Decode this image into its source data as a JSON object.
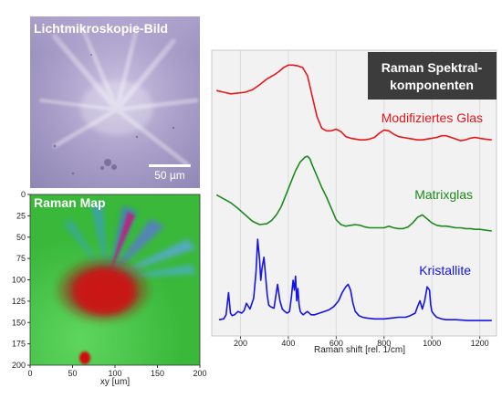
{
  "micro": {
    "title": "Lichtmikroskopie-Bild",
    "scalebar": "50 µm"
  },
  "map": {
    "title": "Raman Map",
    "xlabel": "xy [um]",
    "xticks": [
      "0",
      "50",
      "100",
      "150",
      "200"
    ],
    "yticks": [
      "0",
      "25",
      "50",
      "75",
      "100",
      "125",
      "150",
      "175",
      "200"
    ]
  },
  "spectra": {
    "title_line1": "Raman Spektral-",
    "title_line2": "komponenten",
    "xlabel": "Raman shift [rel. 1/cm]",
    "xticks": [
      "200",
      "400",
      "600",
      "800",
      "1000",
      "1200"
    ]
  },
  "colors": {
    "modified": "#e8161b",
    "matrix": "#1c8a1c",
    "crystal": "#1414e6",
    "title_box": "#3c3c3c",
    "plot_bg": "#f2f2f2"
  },
  "chart_data": {
    "type": "line",
    "xlabel": "Raman shift [rel. 1/cm]",
    "ylabel": "",
    "xlim": [
      80,
      1270
    ],
    "series": [
      {
        "name": "Modifiziertes Glas",
        "x": [
          100,
          130,
          160,
          190,
          220,
          250,
          280,
          310,
          340,
          360,
          380,
          400,
          420,
          440,
          460,
          480,
          500,
          520,
          540,
          560,
          580,
          600,
          620,
          640,
          660,
          680,
          700,
          720,
          740,
          760,
          780,
          800,
          820,
          840,
          860,
          880,
          900,
          920,
          940,
          960,
          980,
          1000,
          1020,
          1040,
          1060,
          1080,
          1100,
          1120,
          1140,
          1160,
          1180,
          1200,
          1220,
          1250
        ],
        "y": [
          0.62,
          0.6,
          0.58,
          0.59,
          0.6,
          0.63,
          0.69,
          0.76,
          0.81,
          0.85,
          0.9,
          0.93,
          0.93,
          0.92,
          0.9,
          0.8,
          0.55,
          0.3,
          0.16,
          0.13,
          0.13,
          0.15,
          0.12,
          0.06,
          0.04,
          0.03,
          0.02,
          0.02,
          0.03,
          0.05,
          0.1,
          0.14,
          0.13,
          0.09,
          0.06,
          0.05,
          0.04,
          0.03,
          0.02,
          0.02,
          0.03,
          0.04,
          0.05,
          0.07,
          0.07,
          0.05,
          0.03,
          0.01,
          0.02,
          0.04,
          0.05,
          0.04,
          0.03,
          0.02
        ]
      },
      {
        "name": "Matrixglas",
        "x": [
          100,
          130,
          160,
          190,
          220,
          250,
          280,
          310,
          330,
          350,
          370,
          390,
          410,
          430,
          450,
          470,
          480,
          490,
          500,
          520,
          540,
          560,
          580,
          600,
          620,
          640,
          660,
          680,
          700,
          720,
          740,
          760,
          780,
          800,
          820,
          840,
          860,
          880,
          900,
          920,
          940,
          960,
          980,
          1000,
          1020,
          1040,
          1060,
          1080,
          1100,
          1120,
          1140,
          1160,
          1180,
          1200,
          1250
        ],
        "y": [
          0.45,
          0.4,
          0.35,
          0.28,
          0.2,
          0.12,
          0.08,
          0.09,
          0.13,
          0.2,
          0.3,
          0.45,
          0.6,
          0.75,
          0.86,
          0.92,
          0.93,
          0.9,
          0.82,
          0.68,
          0.54,
          0.42,
          0.28,
          0.14,
          0.08,
          0.06,
          0.07,
          0.08,
          0.07,
          0.05,
          0.04,
          0.04,
          0.04,
          0.04,
          0.06,
          0.04,
          0.03,
          0.03,
          0.05,
          0.1,
          0.17,
          0.2,
          0.15,
          0.1,
          0.07,
          0.06,
          0.06,
          0.05,
          0.04,
          0.04,
          0.03,
          0.03,
          0.02,
          0.02,
          0.0
        ]
      },
      {
        "name": "Kristallite",
        "x": [
          110,
          130,
          140,
          150,
          158,
          165,
          175,
          190,
          205,
          215,
          225,
          240,
          255,
          265,
          272,
          280,
          285,
          290,
          298,
          305,
          312,
          318,
          325,
          340,
          355,
          365,
          375,
          385,
          395,
          405,
          413,
          420,
          425,
          430,
          435,
          440,
          445,
          450,
          455,
          462,
          470,
          480,
          495,
          510,
          530,
          550,
          570,
          590,
          610,
          625,
          640,
          650,
          660,
          670,
          680,
          695,
          710,
          730,
          760,
          800,
          830,
          860,
          890,
          910,
          930,
          940,
          950,
          960,
          970,
          980,
          990,
          995,
          1000,
          1010,
          1020,
          1040,
          1060,
          1080,
          1100,
          1150,
          1200,
          1250
        ],
        "y": [
          0.02,
          0.03,
          0.08,
          0.35,
          0.1,
          0.07,
          0.08,
          0.12,
          0.1,
          0.13,
          0.22,
          0.15,
          0.28,
          0.6,
          1.0,
          0.75,
          0.5,
          0.65,
          0.78,
          0.55,
          0.32,
          0.2,
          0.18,
          0.16,
          0.45,
          0.25,
          0.15,
          0.12,
          0.1,
          0.12,
          0.3,
          0.5,
          0.38,
          0.55,
          0.25,
          0.4,
          0.2,
          0.12,
          0.1,
          0.08,
          0.1,
          0.12,
          0.08,
          0.08,
          0.1,
          0.12,
          0.14,
          0.18,
          0.25,
          0.35,
          0.42,
          0.45,
          0.38,
          0.22,
          0.12,
          0.07,
          0.05,
          0.04,
          0.03,
          0.03,
          0.04,
          0.05,
          0.05,
          0.07,
          0.1,
          0.18,
          0.25,
          0.15,
          0.25,
          0.42,
          0.38,
          0.2,
          0.12,
          0.08,
          0.05,
          0.03,
          0.02,
          0.02,
          0.02,
          0.01,
          0.01,
          0.01
        ]
      }
    ]
  }
}
